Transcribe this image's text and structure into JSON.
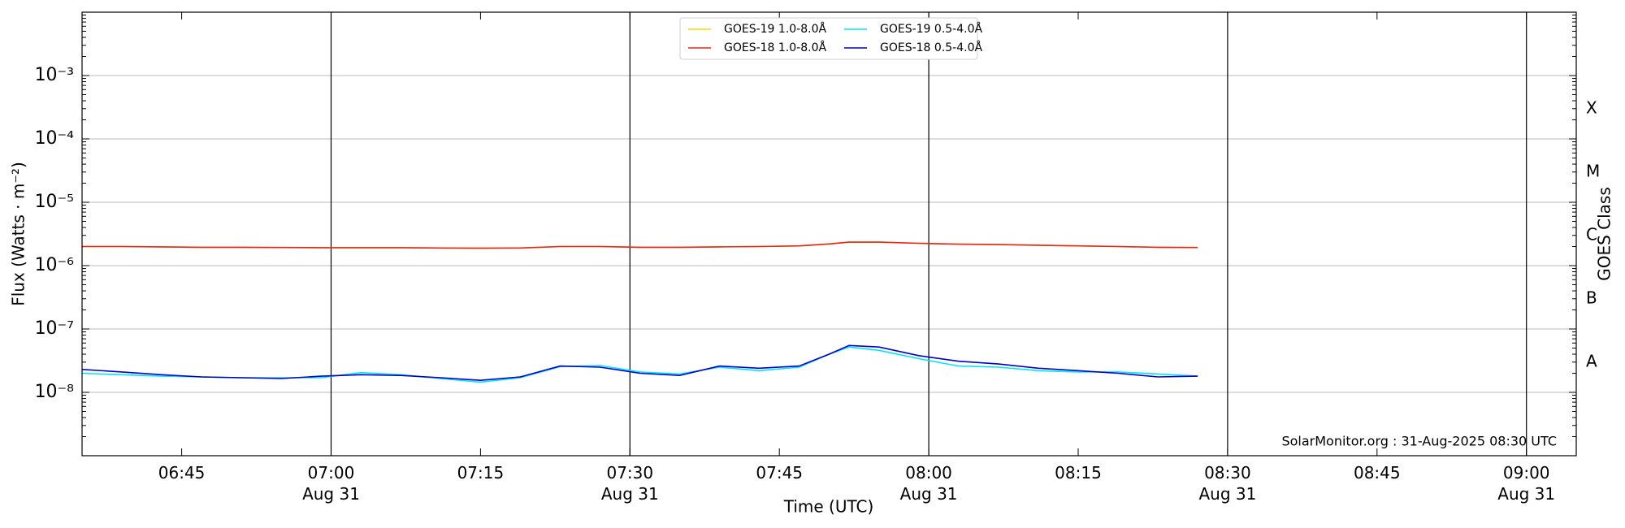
{
  "chart_data": {
    "type": "line",
    "xlabel": "Time (UTC)",
    "ylabel": "Flux (Watts · m⁻²)",
    "y2label": "GOES Class",
    "annotation": "SolarMonitor.org : 31-Aug-2025 08:30 UTC",
    "log_y": true,
    "grid": true,
    "legend": "upper center",
    "xlim": [
      "06:35",
      "09:05"
    ],
    "xticks": [
      "06:45",
      {
        "value": "07:00",
        "label": "07:00\nAug 31"
      },
      "07:15",
      {
        "value": "07:30",
        "label": "07:30\nAug 31"
      },
      "07:45",
      {
        "value": "08:00",
        "label": "08:00\nAug 31"
      },
      "08:15",
      {
        "value": "08:30",
        "label": "08:30\nAug 31"
      },
      "08:45",
      {
        "value": "09:00",
        "label": "09:00\nAug 31"
      }
    ],
    "ylim": [
      1e-09,
      0.01
    ],
    "yticks": [
      {
        "value": 1e-08,
        "label": "10⁻⁸"
      },
      {
        "value": 1e-07,
        "label": "10⁻⁷"
      },
      {
        "value": 1e-06,
        "label": "10⁻⁶"
      },
      {
        "value": 1e-05,
        "label": "10⁻⁵"
      },
      {
        "value": 0.0001,
        "label": "10⁻⁴"
      },
      {
        "value": 0.001,
        "label": "10⁻³"
      }
    ],
    "y2lim": [
      1e-09,
      0.01
    ],
    "y2ticks": [
      {
        "value": 3e-08,
        "label": "A"
      },
      {
        "value": 3e-07,
        "label": "B"
      },
      {
        "value": 3e-06,
        "label": "C"
      },
      {
        "value": 3e-05,
        "label": "M"
      },
      {
        "value": 0.0003,
        "label": "X"
      }
    ],
    "x": [
      "06:35",
      "06:39",
      "06:43",
      "06:47",
      "06:51",
      "06:55",
      "06:59",
      "07:03",
      "07:07",
      "07:11",
      "07:15",
      "07:19",
      "07:23",
      "07:27",
      "07:31",
      "07:35",
      "07:39",
      "07:43",
      "07:47",
      "07:50",
      "07:52",
      "07:55",
      "07:59",
      "08:03",
      "08:07",
      "08:11",
      "08:15",
      "08:19",
      "08:23",
      "08:27"
    ],
    "series": [
      {
        "name": "GOES-19 1.0-8.0Å",
        "color": "#ffd700",
        "values": [
          2e-06,
          2e-06,
          1.98e-06,
          1.95e-06,
          1.95e-06,
          1.93e-06,
          1.92e-06,
          1.92e-06,
          1.92e-06,
          1.9e-06,
          1.88e-06,
          1.9e-06,
          2e-06,
          2e-06,
          1.95e-06,
          1.95e-06,
          1.98e-06,
          2e-06,
          2.05e-06,
          2.2e-06,
          2.35e-06,
          2.35e-06,
          2.25e-06,
          2.18e-06,
          2.15e-06,
          2.1e-06,
          2.05e-06,
          2e-06,
          1.95e-06,
          1.93e-06
        ]
      },
      {
        "name": "GOES-18 1.0-8.0Å",
        "color": "#e8251b",
        "values": [
          2e-06,
          2e-06,
          1.98e-06,
          1.95e-06,
          1.95e-06,
          1.93e-06,
          1.92e-06,
          1.92e-06,
          1.92e-06,
          1.9e-06,
          1.88e-06,
          1.9e-06,
          2e-06,
          2e-06,
          1.95e-06,
          1.95e-06,
          1.98e-06,
          2e-06,
          2.05e-06,
          2.2e-06,
          2.35e-06,
          2.35e-06,
          2.25e-06,
          2.18e-06,
          2.15e-06,
          2.1e-06,
          2.05e-06,
          2e-06,
          1.95e-06,
          1.93e-06
        ]
      },
      {
        "name": "GOES-19 0.5-4.0Å",
        "color": "#00e5ff",
        "values": [
          2e-08,
          1.9e-08,
          1.8e-08,
          1.75e-08,
          1.7e-08,
          1.7e-08,
          1.7e-08,
          2.05e-08,
          1.9e-08,
          1.65e-08,
          1.45e-08,
          1.7e-08,
          2.55e-08,
          2.65e-08,
          2.1e-08,
          1.95e-08,
          2.5e-08,
          2.2e-08,
          2.5e-08,
          4e-08,
          5.2e-08,
          4.6e-08,
          3.4e-08,
          2.6e-08,
          2.5e-08,
          2.2e-08,
          2.1e-08,
          2.1e-08,
          1.95e-08,
          1.8e-08
        ]
      },
      {
        "name": "GOES-18 0.5-4.0Å",
        "color": "#0000cc",
        "values": [
          2.3e-08,
          2.1e-08,
          1.9e-08,
          1.75e-08,
          1.7e-08,
          1.65e-08,
          1.8e-08,
          1.9e-08,
          1.85e-08,
          1.7e-08,
          1.55e-08,
          1.75e-08,
          2.6e-08,
          2.5e-08,
          2e-08,
          1.85e-08,
          2.6e-08,
          2.4e-08,
          2.6e-08,
          4e-08,
          5.5e-08,
          5.2e-08,
          3.8e-08,
          3.1e-08,
          2.8e-08,
          2.4e-08,
          2.2e-08,
          2e-08,
          1.75e-08,
          1.8e-08
        ]
      }
    ]
  }
}
